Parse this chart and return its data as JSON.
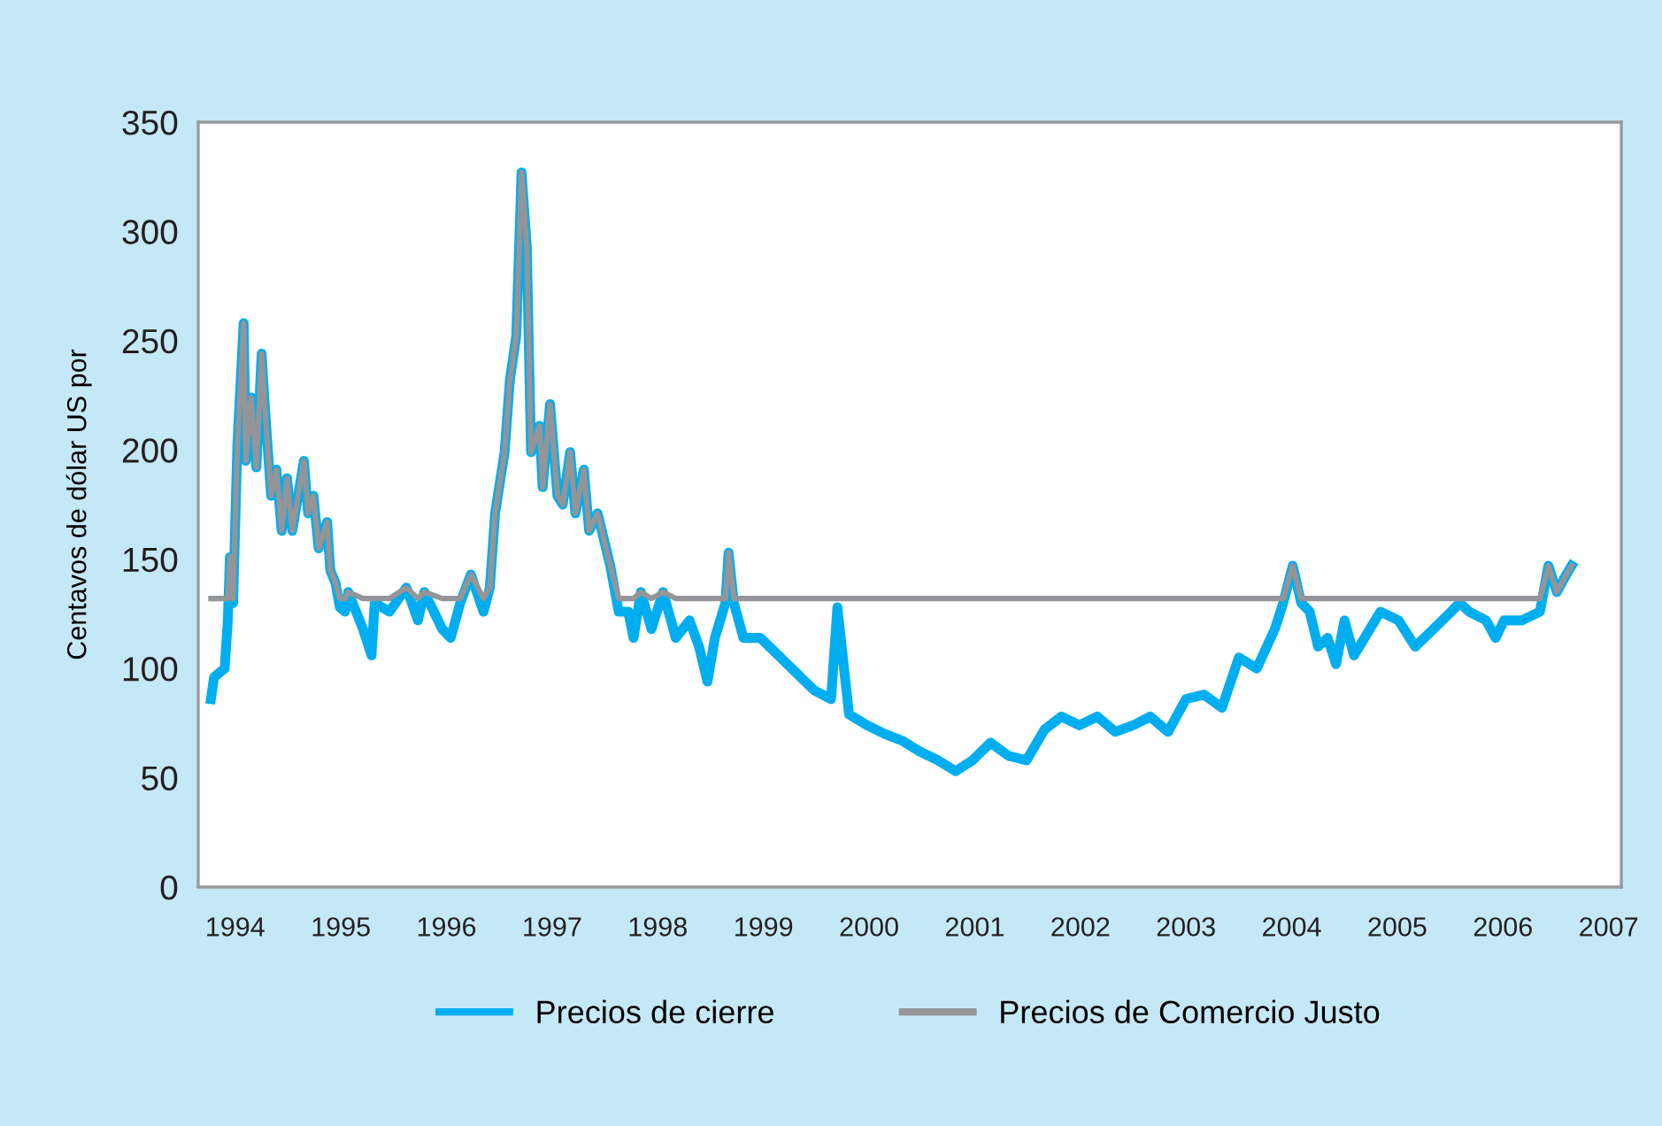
{
  "chart_data": {
    "type": "line",
    "ylabel": "Centavos de dólar US por",
    "x": [
      1993.77,
      1993.8,
      1993.85,
      1993.9,
      1993.93,
      1993.95,
      1993.98,
      1994.02,
      1994.08,
      1994.1,
      1994.15,
      1994.2,
      1994.25,
      1994.28,
      1994.34,
      1994.39,
      1994.44,
      1994.49,
      1994.54,
      1994.65,
      1994.69,
      1994.74,
      1994.79,
      1994.87,
      1994.9,
      1994.95,
      1994.99,
      1995.04,
      1995.07,
      1995.21,
      1995.29,
      1995.32,
      1995.46,
      1995.62,
      1995.73,
      1995.79,
      1995.96,
      1996.04,
      1996.13,
      1996.23,
      1996.35,
      1996.41,
      1996.46,
      1996.55,
      1996.6,
      1996.66,
      1996.71,
      1996.76,
      1996.8,
      1996.88,
      1996.91,
      1996.98,
      1997.05,
      1997.1,
      1997.17,
      1997.22,
      1997.3,
      1997.35,
      1997.43,
      1997.55,
      1997.63,
      1997.72,
      1997.77,
      1997.84,
      1997.94,
      1998.05,
      1998.17,
      1998.3,
      1998.39,
      1998.47,
      1998.54,
      1998.64,
      1998.67,
      1998.72,
      1998.81,
      1998.97,
      1999.14,
      1999.31,
      1999.48,
      1999.64,
      1999.7,
      1999.81,
      1999.98,
      2000.15,
      2000.31,
      2000.48,
      2000.65,
      2000.82,
      2000.98,
      2001.15,
      2001.32,
      2001.49,
      2001.66,
      2001.82,
      2001.99,
      2002.16,
      2002.33,
      2002.5,
      2002.66,
      2002.83,
      2003.0,
      2003.17,
      2003.34,
      2003.5,
      2003.67,
      2003.84,
      2003.92,
      2004.01,
      2004.09,
      2004.17,
      2004.25,
      2004.34,
      2004.42,
      2004.5,
      2004.59,
      2004.84,
      2005.01,
      2005.17,
      2005.34,
      2005.51,
      2005.59,
      2005.68,
      2005.84,
      2005.93,
      2006.01,
      2006.18,
      2006.35,
      2006.43,
      2006.51,
      2006.6,
      2006.65
    ],
    "series": [
      {
        "name": "Precios de cierre",
        "color": "#00aeef",
        "values": [
          86,
          96,
          98,
          100,
          122,
          151,
          130,
          202,
          258,
          195,
          224,
          192,
          244,
          220,
          179,
          191,
          163,
          187,
          163,
          195,
          171,
          179,
          155,
          167,
          145,
          139,
          128,
          126,
          135,
          118,
          106,
          130,
          126,
          137,
          122,
          135,
          118,
          114,
          130,
          143,
          126,
          137,
          171,
          199,
          232,
          252,
          327,
          293,
          199,
          211,
          183,
          221,
          179,
          175,
          199,
          171,
          191,
          163,
          171,
          147,
          126,
          126,
          114,
          135,
          118,
          135,
          114,
          122,
          110,
          94,
          114,
          130,
          153,
          130,
          114,
          114,
          106,
          98,
          90,
          86,
          128,
          79,
          74,
          70,
          67,
          62,
          58,
          53,
          58,
          66,
          60,
          58,
          72,
          78,
          74,
          78,
          71,
          74,
          78,
          71,
          86,
          88,
          82,
          105,
          100,
          118,
          130,
          147,
          130,
          126,
          110,
          114,
          102,
          122,
          106,
          126,
          122,
          110,
          118,
          126,
          130,
          126,
          122,
          114,
          122,
          122,
          126,
          147,
          135,
          143,
          147
        ]
      },
      {
        "name": "Precios de Comercio Justo",
        "color": "#939598",
        "values": [
          132,
          132,
          132,
          132,
          132,
          151,
          132,
          202,
          258,
          195,
          224,
          192,
          244,
          220,
          179,
          191,
          163,
          187,
          163,
          195,
          171,
          179,
          155,
          167,
          145,
          139,
          132,
          132,
          135,
          132,
          132,
          132,
          132,
          137,
          132,
          135,
          132,
          132,
          132,
          143,
          132,
          137,
          171,
          199,
          232,
          252,
          327,
          293,
          199,
          211,
          183,
          221,
          179,
          175,
          199,
          171,
          191,
          163,
          171,
          147,
          132,
          132,
          132,
          135,
          132,
          135,
          132,
          132,
          132,
          132,
          132,
          132,
          153,
          132,
          132,
          132,
          132,
          132,
          132,
          132,
          132,
          132,
          132,
          132,
          132,
          132,
          132,
          132,
          132,
          132,
          132,
          132,
          132,
          132,
          132,
          132,
          132,
          132,
          132,
          132,
          132,
          132,
          132,
          132,
          132,
          132,
          132,
          147,
          132,
          132,
          132,
          132,
          132,
          132,
          132,
          132,
          132,
          132,
          132,
          132,
          132,
          132,
          132,
          132,
          132,
          132,
          132,
          147,
          135,
          143,
          147
        ]
      }
    ],
    "xlim": [
      1993.65,
      2007.12
    ],
    "xticks": [
      1994,
      1995,
      1996,
      1997,
      1998,
      1999,
      2000,
      2001,
      2002,
      2003,
      2004,
      2005,
      2006,
      2007
    ],
    "ylim": [
      0,
      350
    ],
    "yticks": [
      0,
      50,
      100,
      150,
      200,
      250,
      300,
      350
    ],
    "grid": false,
    "legend": "bottom"
  }
}
